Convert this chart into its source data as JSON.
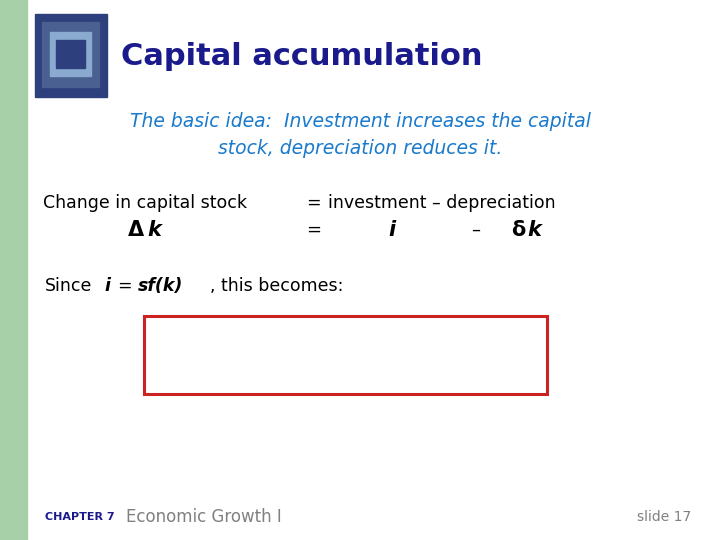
{
  "bg_color": "#ffffff",
  "left_bar_color": "#a8d0a8",
  "title": "Capital accumulation",
  "title_color": "#1a1a8c",
  "subtitle_line1": "The basic idea:  Investment increases the capital",
  "subtitle_line2": "stock, depreciation reduces it.",
  "subtitle_color": "#1a7acc",
  "text_color": "#000000",
  "box_border_color": "#cc2222",
  "footer_color": "#808080",
  "footer_chapter_color": "#1a1a8c"
}
